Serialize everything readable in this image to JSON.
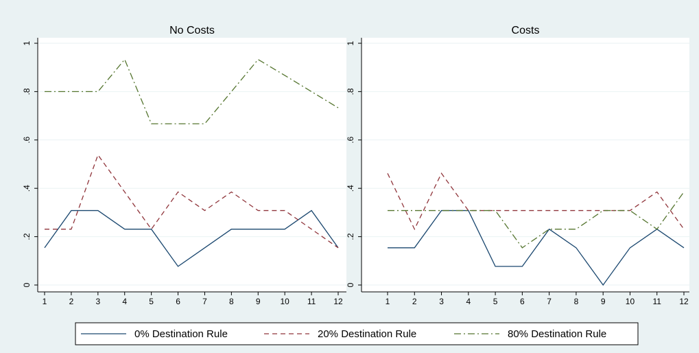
{
  "chart_data": [
    {
      "type": "line",
      "title": "No Costs",
      "x": [
        1,
        2,
        3,
        4,
        5,
        6,
        7,
        8,
        9,
        10,
        11,
        12
      ],
      "xlim": [
        1,
        12
      ],
      "xticks": [
        1,
        2,
        3,
        4,
        5,
        6,
        7,
        8,
        9,
        10,
        11,
        12
      ],
      "ylim": [
        0,
        1
      ],
      "yticks": [
        0,
        {
          "value": 0.2,
          "label": ".2"
        },
        {
          "value": 0.4,
          "label": ".4"
        },
        {
          "value": 0.6,
          "label": ".6"
        },
        {
          "value": 0.8,
          "label": ".8"
        },
        1
      ],
      "grid": true,
      "series": [
        {
          "name": "0% Destination Rule",
          "color": "#1a476f",
          "dash": "solid",
          "values": [
            0.154,
            0.308,
            0.308,
            0.231,
            0.231,
            0.077,
            0.154,
            0.231,
            0.231,
            0.231,
            0.308,
            0.154
          ]
        },
        {
          "name": "20% Destination Rule",
          "color": "#90353b",
          "dash": "dash",
          "values": [
            0.231,
            0.231,
            0.538,
            0.385,
            0.231,
            0.385,
            0.308,
            0.385,
            0.308,
            0.308,
            0.231,
            0.154
          ]
        },
        {
          "name": "80% Destination Rule",
          "color": "#55752f",
          "dash": "dashdot",
          "values": [
            0.8,
            0.8,
            0.8,
            0.933,
            0.667,
            0.667,
            0.667,
            0.8,
            0.933,
            0.867,
            0.8,
            0.733
          ]
        }
      ]
    },
    {
      "type": "line",
      "title": "Costs",
      "x": [
        1,
        2,
        3,
        4,
        5,
        6,
        7,
        8,
        9,
        10,
        11,
        12
      ],
      "xlim": [
        1,
        12
      ],
      "xticks": [
        1,
        2,
        3,
        4,
        5,
        6,
        7,
        8,
        9,
        10,
        11,
        12
      ],
      "ylim": [
        0,
        1
      ],
      "yticks": [
        0,
        {
          "value": 0.2,
          "label": ".2"
        },
        {
          "value": 0.4,
          "label": ".4"
        },
        {
          "value": 0.6,
          "label": ".6"
        },
        {
          "value": 0.8,
          "label": ".8"
        },
        1
      ],
      "grid": true,
      "series": [
        {
          "color": "#1a476f",
          "dash": "solid",
          "values": [
            0.154,
            0.154,
            0.308,
            0.308,
            0.077,
            0.077,
            0.231,
            0.154,
            0,
            0.154,
            0.231,
            0.154
          ]
        },
        {
          "color": "#90353b",
          "dash": "dash",
          "values": [
            0.462,
            0.231,
            0.462,
            0.308,
            0.308,
            0.308,
            0.308,
            0.308,
            0.308,
            0.308,
            0.385,
            0.231
          ]
        },
        {
          "color": "#55752f",
          "dash": "dashdot",
          "values": [
            0.308,
            0.308,
            0.308,
            0.308,
            0.308,
            0.154,
            0.231,
            0.231,
            0.308,
            0.308,
            0.231,
            0.385
          ]
        }
      ]
    }
  ]
}
